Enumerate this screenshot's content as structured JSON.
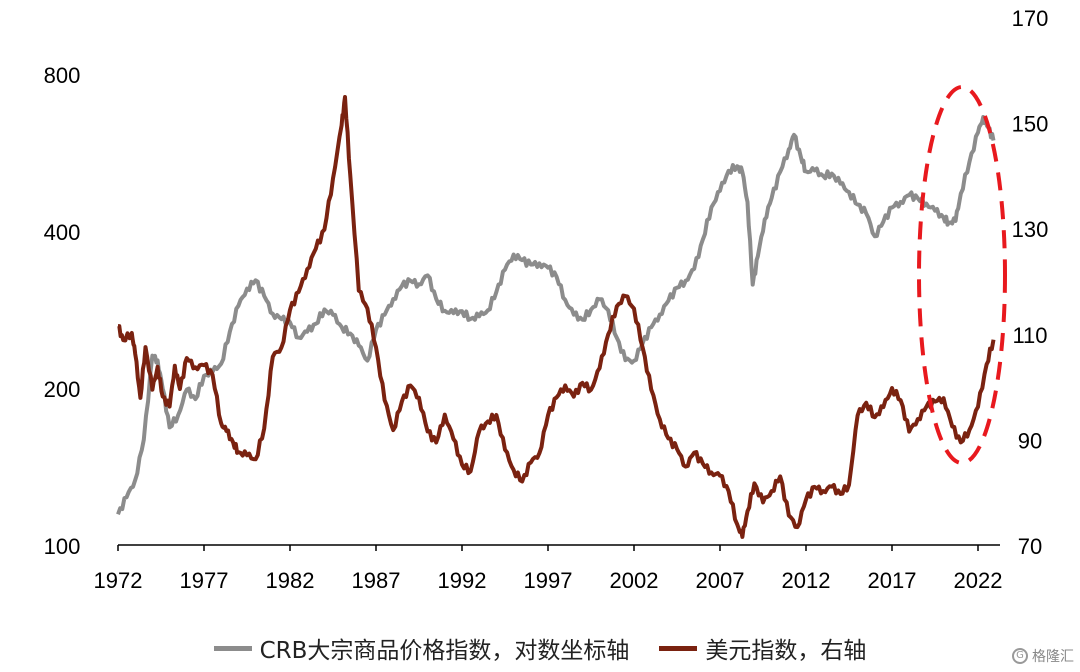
{
  "chart_data": {
    "type": "line",
    "title": "",
    "colors": {
      "crb": "#8c8c8c",
      "usd": "#7a2210",
      "annotation": "#e8191e"
    },
    "x_ticks": [
      "1972",
      "1977",
      "1982",
      "1987",
      "1992",
      "1997",
      "2002",
      "2007",
      "2012",
      "2017",
      "2022"
    ],
    "left_axis": {
      "scale": "log",
      "ticks": [
        "100",
        "200",
        "400",
        "800"
      ],
      "ylim": [
        100,
        1000
      ]
    },
    "right_axis": {
      "scale": "linear",
      "ticks": [
        "70",
        "90",
        "110",
        "130",
        "150",
        "170"
      ],
      "ylim": [
        70,
        170
      ]
    },
    "series": [
      {
        "name": "CRB大宗商品价格指数，对数坐标轴",
        "axis": "left",
        "x": [
          1972.0,
          1972.5,
          1973.0,
          1973.5,
          1974.0,
          1974.3,
          1974.6,
          1975.0,
          1975.5,
          1976.0,
          1976.5,
          1977.0,
          1977.5,
          1978.0,
          1978.5,
          1979.0,
          1979.5,
          1980.0,
          1980.5,
          1981.0,
          1981.5,
          1982.0,
          1982.5,
          1983.0,
          1983.5,
          1984.0,
          1984.5,
          1985.0,
          1985.5,
          1986.0,
          1986.5,
          1987.0,
          1987.5,
          1988.0,
          1988.5,
          1989.0,
          1989.5,
          1990.0,
          1990.5,
          1991.0,
          1991.5,
          1992.0,
          1992.5,
          1993.0,
          1993.5,
          1994.0,
          1994.5,
          1995.0,
          1995.5,
          1996.0,
          1996.5,
          1997.0,
          1997.5,
          1998.0,
          1998.5,
          1999.0,
          1999.5,
          2000.0,
          2000.5,
          2001.0,
          2001.5,
          2002.0,
          2002.5,
          2003.0,
          2003.5,
          2004.0,
          2004.5,
          2005.0,
          2005.5,
          2006.0,
          2006.5,
          2007.0,
          2007.5,
          2008.0,
          2008.3,
          2008.6,
          2008.9,
          2009.2,
          2009.6,
          2010.0,
          2010.5,
          2011.0,
          2011.3,
          2011.7,
          2012.0,
          2012.5,
          2013.0,
          2013.5,
          2014.0,
          2014.5,
          2015.0,
          2015.5,
          2016.0,
          2016.5,
          2017.0,
          2017.5,
          2018.0,
          2018.5,
          2019.0,
          2019.5,
          2020.0,
          2020.3,
          2020.7,
          2021.0,
          2021.5,
          2022.0,
          2022.3,
          2022.6,
          2022.9
        ],
        "values": [
          115,
          125,
          135,
          160,
          230,
          225,
          200,
          170,
          180,
          200,
          190,
          210,
          215,
          225,
          260,
          290,
          310,
          320,
          300,
          280,
          275,
          270,
          250,
          255,
          265,
          285,
          280,
          265,
          255,
          240,
          225,
          260,
          280,
          300,
          315,
          320,
          315,
          330,
          300,
          285,
          280,
          280,
          270,
          275,
          285,
          310,
          340,
          360,
          350,
          345,
          350,
          345,
          330,
          295,
          275,
          270,
          285,
          300,
          285,
          250,
          225,
          225,
          245,
          265,
          280,
          295,
          310,
          320,
          340,
          390,
          450,
          480,
          520,
          530,
          520,
          460,
          320,
          360,
          420,
          460,
          520,
          580,
          620,
          560,
          520,
          520,
          510,
          520,
          500,
          480,
          450,
          430,
          390,
          420,
          450,
          460,
          470,
          460,
          450,
          440,
          430,
          420,
          420,
          470,
          540,
          620,
          670,
          640,
          600
        ]
      },
      {
        "name": "美元指数，右轴",
        "axis": "right",
        "x": [
          1972.0,
          1972.3,
          1972.8,
          1973.0,
          1973.3,
          1973.6,
          1974.0,
          1974.3,
          1974.6,
          1975.0,
          1975.3,
          1975.6,
          1976.0,
          1976.5,
          1977.0,
          1977.5,
          1978.0,
          1978.3,
          1978.7,
          1979.0,
          1979.5,
          1980.0,
          1980.5,
          1981.0,
          1981.5,
          1982.0,
          1982.5,
          1983.0,
          1983.5,
          1984.0,
          1984.5,
          1985.0,
          1985.2,
          1985.5,
          1986.0,
          1986.5,
          1987.0,
          1987.5,
          1988.0,
          1988.5,
          1989.0,
          1989.5,
          1990.0,
          1990.5,
          1991.0,
          1991.5,
          1992.0,
          1992.5,
          1993.0,
          1993.5,
          1994.0,
          1994.5,
          1995.0,
          1995.5,
          1996.0,
          1996.5,
          1997.0,
          1997.5,
          1998.0,
          1998.5,
          1999.0,
          1999.5,
          2000.0,
          2000.5,
          2001.0,
          2001.5,
          2002.0,
          2002.5,
          2003.0,
          2003.5,
          2004.0,
          2004.5,
          2005.0,
          2005.5,
          2006.0,
          2006.5,
          2007.0,
          2007.5,
          2008.0,
          2008.3,
          2008.6,
          2009.0,
          2009.5,
          2010.0,
          2010.5,
          2011.0,
          2011.5,
          2012.0,
          2012.5,
          2013.0,
          2013.5,
          2014.0,
          2014.5,
          2015.0,
          2015.5,
          2016.0,
          2016.5,
          2017.0,
          2017.5,
          2018.0,
          2018.5,
          2019.0,
          2019.5,
          2020.0,
          2020.5,
          2021.0,
          2021.5,
          2022.0,
          2022.5,
          2022.9
        ],
        "values": [
          112,
          109,
          110,
          106,
          98,
          108,
          100,
          104,
          98,
          96,
          104,
          100,
          106,
          104,
          104,
          102,
          93,
          92,
          90,
          88,
          87,
          86,
          92,
          106,
          108,
          115,
          118,
          122,
          126,
          130,
          140,
          150,
          155,
          140,
          118,
          115,
          108,
          98,
          92,
          97,
          100,
          98,
          92,
          90,
          95,
          90,
          85,
          84,
          92,
          94,
          95,
          88,
          84,
          82,
          86,
          88,
          95,
          98,
          100,
          98,
          101,
          100,
          104,
          110,
          115,
          117,
          115,
          108,
          100,
          94,
          90,
          88,
          85,
          88,
          86,
          84,
          83,
          80,
          74,
          72,
          77,
          82,
          78,
          80,
          83,
          76,
          74,
          79,
          81,
          80,
          81,
          80,
          82,
          95,
          97,
          94,
          96,
          100,
          98,
          92,
          94,
          96,
          97,
          98,
          93,
          90,
          92,
          96,
          104,
          109
        ]
      }
    ],
    "annotation": {
      "type": "dashed-ellipse",
      "period": "2020-2022"
    }
  },
  "legend": {
    "items": [
      {
        "label": "CRB大宗商品价格指数，对数坐标轴"
      },
      {
        "label": "美元指数，右轴"
      }
    ]
  },
  "watermark": {
    "text": "格隆汇",
    "icon": "watermark-logo-icon"
  }
}
